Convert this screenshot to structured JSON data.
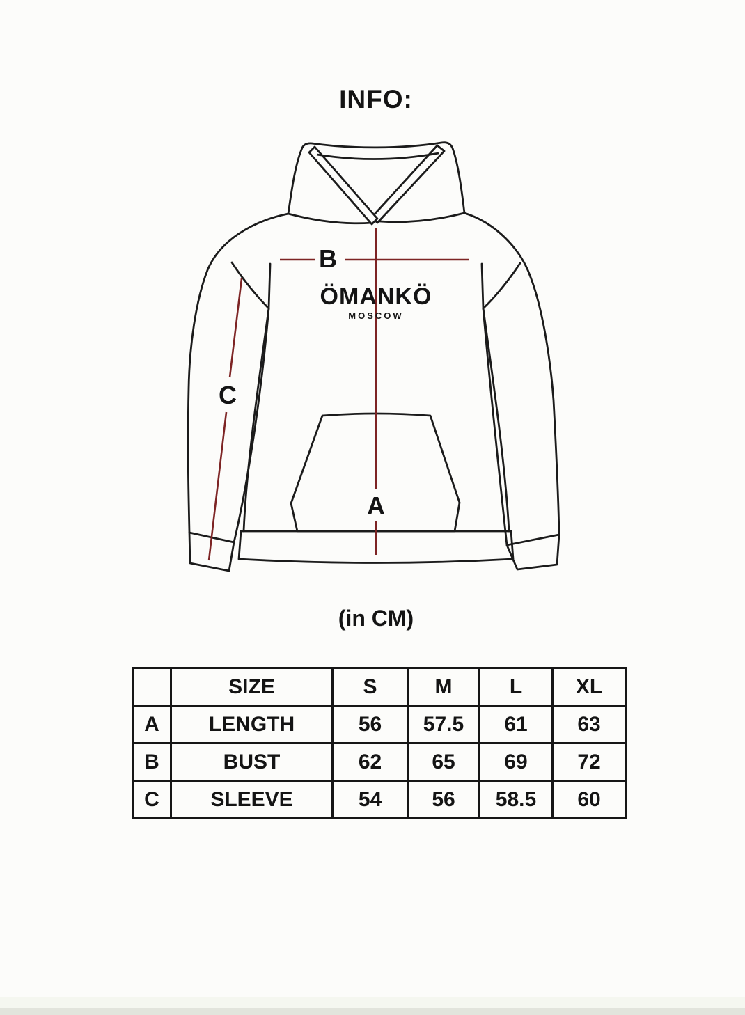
{
  "page": {
    "title": "INFO:",
    "unit_note": "(in CM)",
    "background_color": "#fcfcfa"
  },
  "diagram": {
    "brand": "ÖMANKÖ",
    "brand_sub": "MOSCOW",
    "markers": {
      "a": "A",
      "b": "B",
      "c": "C"
    },
    "measurement_line_color": "#7d2424",
    "outline_color": "#1b1b1b"
  },
  "size_table": {
    "headers": [
      "",
      "SIZE",
      "S",
      "M",
      "L",
      "XL"
    ],
    "rows": [
      {
        "key": "A",
        "name": "LENGTH",
        "values": [
          "56",
          "57.5",
          "61",
          "63"
        ]
      },
      {
        "key": "B",
        "name": "BUST",
        "values": [
          "62",
          "65",
          "69",
          "72"
        ]
      },
      {
        "key": "C",
        "name": "SLEEVE",
        "values": [
          "54",
          "56",
          "58.5",
          "60"
        ]
      }
    ]
  },
  "chart_data": {
    "type": "table",
    "title": "INFO:",
    "unit": "cm",
    "columns": [
      "SIZE",
      "S",
      "M",
      "L",
      "XL"
    ],
    "rows": [
      {
        "label": "A",
        "measure": "LENGTH",
        "values": [
          56,
          57.5,
          61,
          63
        ]
      },
      {
        "label": "B",
        "measure": "BUST",
        "values": [
          62,
          65,
          69,
          72
        ]
      },
      {
        "label": "C",
        "measure": "SLEEVE",
        "values": [
          54,
          56,
          58.5,
          60
        ]
      }
    ]
  }
}
